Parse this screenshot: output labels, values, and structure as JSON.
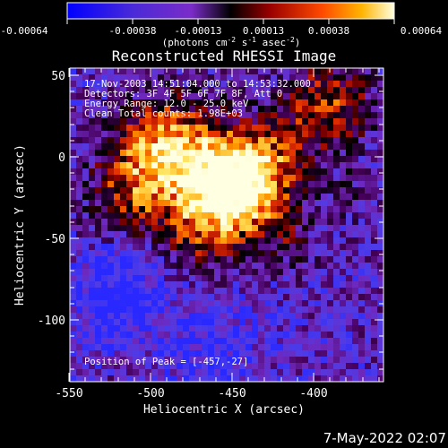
{
  "colorbar": {
    "labels": [
      "-0.00064",
      "-0.00038",
      "-0.00013",
      "0.00013",
      "0.00038",
      "0.00064"
    ],
    "units_main": "(photons cm",
    "units_sup1": "-2",
    "units_mid": " s",
    "units_sup2": "-1",
    "units_end": " asec",
    "units_sup3": "-2",
    "units_close": ")"
  },
  "title": "Reconstructed RHESSI Image",
  "info": {
    "line1": "17-Nov-2003 14:51:04.000 to 14:53:32.000",
    "line2": "Detectors: 3F 4F 5F 6F 7F 8F, Att 0",
    "line3": "Energy Range: 12.0 - 25.0 keV",
    "line4": "Clean     Total counts: 1.98E+03"
  },
  "peak_text": "Position of Peak = [-457,-27]",
  "axes": {
    "xlabel": "Heliocentric X (arcsec)",
    "ylabel": "Heliocentric Y (arcsec)",
    "xticks": [
      "-550",
      "-500",
      "-450",
      "-400"
    ],
    "yticks": [
      "50",
      "0",
      "-50",
      "-100"
    ]
  },
  "timestamp": "7-May-2022 02:07",
  "colors": {
    "background": "#000000",
    "axis": "#ffffff",
    "map_low": "#3a3ad8",
    "map_mid": "#8a2bd0",
    "map_high": "#ffff80"
  }
}
